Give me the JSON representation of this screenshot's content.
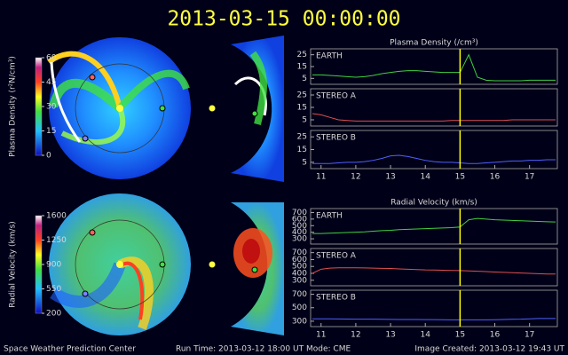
{
  "title": "2013-03-15 00:00:00",
  "footer": {
    "left": "Space Weather Prediction Center",
    "run_time": "Run Time: 2013-03-12 18:00 UT",
    "mode": "Mode: CME",
    "created": "Image Created: 2013-03-12 19:43 UT"
  },
  "colorbars": [
    {
      "label": "Plasma Density (r²N/cm³)",
      "lim": [
        0,
        60
      ],
      "ticks": [
        0,
        15,
        30,
        45,
        60
      ]
    },
    {
      "label": "Radial Velocity (km/s)",
      "lim": [
        200,
        1600
      ],
      "ticks": [
        200,
        550,
        900,
        1250,
        1600
      ]
    }
  ],
  "chart_data": [
    {
      "type": "line",
      "title": "Plasma Density (/cm³)",
      "annotation": "EARTH",
      "marker_x": 15,
      "marker_color": "#ffff00",
      "x": [
        10.75,
        11,
        11.25,
        11.5,
        11.75,
        12,
        12.25,
        12.5,
        12.75,
        13,
        13.25,
        13.5,
        13.75,
        14,
        14.25,
        14.5,
        14.75,
        15,
        15.25,
        15.5,
        15.75,
        16,
        16.25,
        16.5,
        16.75,
        17,
        17.25,
        17.5,
        17.75
      ],
      "series": [
        {
          "color": "#40d040",
          "values": [
            8,
            8,
            7.5,
            7,
            6.5,
            6,
            6.5,
            7.5,
            9,
            10,
            11,
            11.5,
            11.5,
            11,
            10.5,
            10,
            10,
            10,
            25,
            6,
            3.5,
            3,
            3,
            3,
            3,
            3.5,
            3.5,
            3.5,
            3.5
          ]
        }
      ],
      "xlim": [
        10.7,
        17.8
      ],
      "ylim": [
        0,
        30
      ],
      "yticks": [
        5,
        15,
        25
      ]
    },
    {
      "type": "line",
      "annotation": "STEREO A",
      "marker_x": 15,
      "marker_color": "#ffff00",
      "x": [
        10.75,
        11,
        11.25,
        11.5,
        11.75,
        12,
        12.25,
        12.5,
        12.75,
        13,
        13.25,
        13.5,
        13.75,
        14,
        14.25,
        14.5,
        14.75,
        15,
        15.25,
        15.5,
        15.75,
        16,
        16.25,
        16.5,
        16.75,
        17,
        17.25,
        17.5,
        17.75
      ],
      "series": [
        {
          "color": "#e05050",
          "values": [
            10,
            9,
            7,
            5,
            4.5,
            4,
            4,
            4,
            4,
            4,
            4,
            4,
            4,
            4,
            4,
            4,
            4.5,
            4.5,
            4.5,
            4.5,
            4.5,
            4.5,
            4.5,
            5,
            5,
            5,
            5,
            5,
            5
          ]
        }
      ],
      "xlim": [
        10.7,
        17.8
      ],
      "ylim": [
        0,
        30
      ],
      "yticks": [
        5,
        15,
        25
      ]
    },
    {
      "type": "line",
      "annotation": "STEREO B",
      "marker_x": 15,
      "marker_color": "#ffff00",
      "x": [
        10.75,
        11,
        11.25,
        11.5,
        11.75,
        12,
        12.25,
        12.5,
        12.75,
        13,
        13.25,
        13.5,
        13.75,
        14,
        14.25,
        14.5,
        14.75,
        15,
        15.25,
        15.5,
        15.75,
        16,
        16.25,
        16.5,
        16.75,
        17,
        17.25,
        17.5,
        17.75
      ],
      "series": [
        {
          "color": "#5060ff",
          "values": [
            4,
            4,
            4,
            4.5,
            5,
            5,
            5.5,
            6.5,
            8,
            10,
            10.5,
            9.5,
            8,
            6.5,
            5.5,
            5,
            5,
            4.5,
            4,
            4,
            4.5,
            5,
            5.5,
            6,
            6,
            6.5,
            6.5,
            7,
            7
          ]
        }
      ],
      "xlim": [
        10.7,
        17.8
      ],
      "ylim": [
        0,
        30
      ],
      "yticks": [
        5,
        15,
        25
      ],
      "xticks": [
        11,
        12,
        13,
        14,
        15,
        16,
        17
      ]
    },
    {
      "type": "line",
      "title": "Radial Velocity (km/s)",
      "annotation": "EARTH",
      "marker_x": 15,
      "marker_color": "#ffff00",
      "x": [
        10.75,
        11,
        11.25,
        11.5,
        11.75,
        12,
        12.25,
        12.5,
        12.75,
        13,
        13.25,
        13.5,
        13.75,
        14,
        14.25,
        14.5,
        14.75,
        15,
        15.25,
        15.5,
        15.75,
        16,
        16.25,
        16.5,
        16.75,
        17,
        17.25,
        17.5,
        17.75
      ],
      "series": [
        {
          "color": "#40d040",
          "values": [
            380,
            380,
            385,
            390,
            395,
            400,
            405,
            415,
            425,
            430,
            440,
            445,
            450,
            455,
            460,
            465,
            470,
            480,
            590,
            610,
            600,
            590,
            585,
            580,
            575,
            570,
            565,
            560,
            555
          ]
        }
      ],
      "xlim": [
        10.7,
        17.8
      ],
      "ylim": [
        220,
        760
      ],
      "yticks": [
        300,
        400,
        500,
        600,
        700
      ]
    },
    {
      "type": "line",
      "annotation": "STEREO A",
      "marker_x": 15,
      "marker_color": "#ffff00",
      "x": [
        10.75,
        11,
        11.25,
        11.5,
        11.75,
        12,
        12.25,
        12.5,
        12.75,
        13,
        13.25,
        13.5,
        13.75,
        14,
        14.25,
        14.5,
        14.75,
        15,
        15.25,
        15.5,
        15.75,
        16,
        16.25,
        16.5,
        16.75,
        17,
        17.25,
        17.5,
        17.75
      ],
      "series": [
        {
          "color": "#e05050",
          "values": [
            400,
            460,
            475,
            480,
            480,
            480,
            478,
            475,
            472,
            470,
            465,
            460,
            455,
            450,
            448,
            445,
            442,
            440,
            435,
            430,
            425,
            420,
            415,
            410,
            405,
            400,
            395,
            390,
            390
          ]
        }
      ],
      "xlim": [
        10.7,
        17.8
      ],
      "ylim": [
        220,
        760
      ],
      "yticks": [
        300,
        400,
        500,
        600,
        700
      ]
    },
    {
      "type": "line",
      "annotation": "STEREO B",
      "marker_x": 15,
      "marker_color": "#ffff00",
      "x": [
        10.75,
        11,
        11.25,
        11.5,
        11.75,
        12,
        12.25,
        12.5,
        12.75,
        13,
        13.25,
        13.5,
        13.75,
        14,
        14.25,
        14.5,
        14.75,
        15,
        15.25,
        15.5,
        15.75,
        16,
        16.25,
        16.5,
        16.75,
        17,
        17.25,
        17.5,
        17.75
      ],
      "series": [
        {
          "color": "#5060ff",
          "values": [
            335,
            335,
            335,
            333,
            332,
            330,
            330,
            330,
            328,
            327,
            326,
            325,
            325,
            324,
            323,
            322,
            321,
            320,
            320,
            320,
            320,
            322,
            325,
            328,
            330,
            335,
            340,
            340,
            340
          ]
        }
      ],
      "xlim": [
        10.7,
        17.8
      ],
      "ylim": [
        220,
        760
      ],
      "yticks": [
        300,
        500,
        700
      ],
      "xticks": [
        11,
        12,
        13,
        14,
        15,
        16,
        17
      ]
    }
  ]
}
